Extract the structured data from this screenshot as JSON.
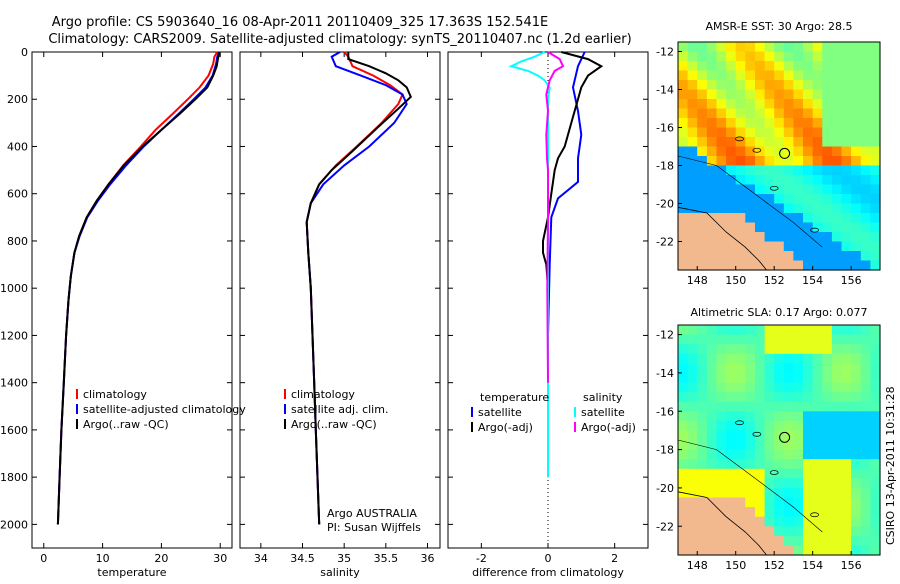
{
  "title_line1": "Argo profile: CS 5903640_16 08-Apr-2011 20110409_325 17.363S 152.541E",
  "title_line2": "Climatology: CARS2009. Satellite-adjusted climatology: synTS_20110407.nc (1.2d earlier)",
  "credit": "CSIRO 13-Apr-2011 10:31:28",
  "colors": {
    "clim": "#ff0000",
    "sat": "#0000ff",
    "argo": "#000000",
    "sal_sat": "#00ffff",
    "sal_argo": "#ff00ff",
    "land": "#f2b88e"
  },
  "chart_data": [
    {
      "id": "temperature",
      "type": "line",
      "xlabel": "temperature",
      "ylabel": "",
      "xlim": [
        -2,
        32
      ],
      "ylim": [
        2100,
        0
      ],
      "xticks": [
        0,
        10,
        20,
        30
      ],
      "yticks": [
        0,
        200,
        400,
        600,
        800,
        1000,
        1200,
        1400,
        1600,
        1800,
        2000
      ],
      "legend": [
        "climatology",
        "satellite-adjusted climatology",
        "Argo(..raw -QC)"
      ],
      "series": [
        {
          "name": "climatology",
          "color": "clim",
          "points": [
            [
              29.5,
              0
            ],
            [
              29.0,
              20
            ],
            [
              28.8,
              50
            ],
            [
              28.0,
              100
            ],
            [
              26.5,
              150
            ],
            [
              24.5,
              200
            ],
            [
              22.0,
              260
            ],
            [
              19.0,
              330
            ],
            [
              16.5,
              400
            ],
            [
              13.5,
              480
            ],
            [
              11.0,
              560
            ],
            [
              9.0,
              630
            ],
            [
              7.3,
              700
            ],
            [
              6.0,
              780
            ],
            [
              5.2,
              850
            ],
            [
              4.6,
              950
            ],
            [
              4.2,
              1050
            ],
            [
              3.8,
              1200
            ],
            [
              3.4,
              1400
            ],
            [
              3.0,
              1600
            ],
            [
              2.7,
              1800
            ],
            [
              2.4,
              2000
            ]
          ]
        },
        {
          "name": "satellite-adjusted climatology",
          "color": "sat",
          "points": [
            [
              29.8,
              0
            ],
            [
              29.5,
              20
            ],
            [
              29.3,
              50
            ],
            [
              28.7,
              100
            ],
            [
              27.5,
              150
            ],
            [
              25.5,
              200
            ],
            [
              23.0,
              260
            ],
            [
              20.0,
              330
            ],
            [
              17.0,
              400
            ],
            [
              14.0,
              480
            ],
            [
              11.3,
              560
            ],
            [
              9.2,
              630
            ],
            [
              7.4,
              700
            ],
            [
              6.1,
              780
            ],
            [
              5.2,
              850
            ],
            [
              4.6,
              950
            ],
            [
              4.2,
              1050
            ],
            [
              3.8,
              1200
            ],
            [
              3.4,
              1400
            ],
            [
              3.0,
              1600
            ],
            [
              2.7,
              1800
            ],
            [
              2.4,
              2000
            ]
          ]
        },
        {
          "name": "Argo(..raw -QC)",
          "color": "argo",
          "points": [
            [
              29.9,
              0
            ],
            [
              29.6,
              30
            ],
            [
              29.4,
              60
            ],
            [
              28.8,
              100
            ],
            [
              27.8,
              150
            ],
            [
              25.8,
              200
            ],
            [
              23.2,
              260
            ],
            [
              20.0,
              330
            ],
            [
              16.8,
              400
            ],
            [
              13.6,
              480
            ],
            [
              11.0,
              560
            ],
            [
              9.0,
              630
            ],
            [
              7.3,
              700
            ],
            [
              6.0,
              780
            ],
            [
              5.2,
              850
            ],
            [
              4.6,
              950
            ],
            [
              4.2,
              1050
            ],
            [
              3.8,
              1200
            ],
            [
              3.4,
              1400
            ],
            [
              3.0,
              1600
            ],
            [
              2.7,
              1800
            ],
            [
              2.4,
              2000
            ]
          ]
        }
      ]
    },
    {
      "id": "salinity",
      "type": "line",
      "xlabel": "salinity",
      "xlim": [
        33.75,
        36.15
      ],
      "ylim": [
        2100,
        0
      ],
      "xticks": [
        34,
        34.5,
        35,
        35.5,
        36
      ],
      "legend": [
        "climatology",
        "satellite adj. clim.",
        "Argo(..raw -QC)"
      ],
      "annotation": [
        "Argo AUSTRALIA",
        "PI: Susan Wijffels"
      ],
      "series": [
        {
          "name": "climatology",
          "color": "clim",
          "points": [
            [
              35.0,
              0
            ],
            [
              35.05,
              20
            ],
            [
              35.1,
              60
            ],
            [
              35.35,
              100
            ],
            [
              35.55,
              140
            ],
            [
              35.7,
              180
            ],
            [
              35.65,
              220
            ],
            [
              35.45,
              300
            ],
            [
              35.15,
              400
            ],
            [
              34.9,
              480
            ],
            [
              34.7,
              560
            ],
            [
              34.6,
              640
            ],
            [
              34.55,
              720
            ],
            [
              34.57,
              850
            ],
            [
              34.6,
              1000
            ],
            [
              34.62,
              1200
            ],
            [
              34.64,
              1400
            ],
            [
              34.66,
              1600
            ],
            [
              34.68,
              1800
            ],
            [
              34.7,
              2000
            ]
          ]
        },
        {
          "name": "satellite adj. clim.",
          "color": "sat",
          "points": [
            [
              34.95,
              0
            ],
            [
              34.85,
              20
            ],
            [
              34.9,
              60
            ],
            [
              35.2,
              100
            ],
            [
              35.5,
              140
            ],
            [
              35.7,
              180
            ],
            [
              35.75,
              220
            ],
            [
              35.6,
              300
            ],
            [
              35.3,
              400
            ],
            [
              35.0,
              480
            ],
            [
              34.75,
              560
            ],
            [
              34.6,
              640
            ],
            [
              34.55,
              720
            ],
            [
              34.57,
              850
            ],
            [
              34.6,
              1000
            ],
            [
              34.62,
              1200
            ],
            [
              34.64,
              1400
            ],
            [
              34.66,
              1600
            ],
            [
              34.68,
              1800
            ],
            [
              34.7,
              2000
            ]
          ]
        },
        {
          "name": "Argo(..raw -QC)",
          "color": "argo",
          "points": [
            [
              35.05,
              0
            ],
            [
              35.05,
              30
            ],
            [
              35.3,
              60
            ],
            [
              35.5,
              90
            ],
            [
              35.65,
              120
            ],
            [
              35.75,
              150
            ],
            [
              35.8,
              190
            ],
            [
              35.65,
              240
            ],
            [
              35.4,
              320
            ],
            [
              35.1,
              420
            ],
            [
              34.85,
              500
            ],
            [
              34.7,
              560
            ],
            [
              34.6,
              640
            ],
            [
              34.55,
              720
            ],
            [
              34.57,
              850
            ],
            [
              34.6,
              1000
            ],
            [
              34.62,
              1200
            ],
            [
              34.64,
              1400
            ],
            [
              34.66,
              1600
            ],
            [
              34.68,
              1800
            ],
            [
              34.7,
              2000
            ]
          ]
        }
      ]
    },
    {
      "id": "difference",
      "type": "line",
      "xlabel": "difference from climatology",
      "xlim": [
        -3,
        3
      ],
      "ylim": [
        2100,
        0
      ],
      "xticks": [
        -2,
        0,
        2
      ],
      "legend_left": {
        "title": "temperature",
        "items": [
          "satellite",
          "Argo(-adj)"
        ]
      },
      "legend_right": {
        "title": "salinity",
        "items": [
          "satellite",
          "Argo(-adj)"
        ]
      },
      "series": [
        {
          "name": "temperature satellite",
          "color": "sat",
          "points": [
            [
              1.1,
              0
            ],
            [
              0.9,
              60
            ],
            [
              0.75,
              150
            ],
            [
              0.9,
              250
            ],
            [
              1.0,
              350
            ],
            [
              0.9,
              450
            ],
            [
              0.9,
              550
            ],
            [
              0.3,
              620
            ],
            [
              0.1,
              700
            ],
            [
              0.05,
              900
            ],
            [
              0.0,
              1200
            ],
            [
              0.0,
              1800
            ]
          ]
        },
        {
          "name": "temperature Argo(-adj)",
          "color": "argo",
          "points": [
            [
              0.4,
              0
            ],
            [
              1.2,
              30
            ],
            [
              1.6,
              60
            ],
            [
              1.2,
              100
            ],
            [
              1.0,
              150
            ],
            [
              0.9,
              200
            ],
            [
              0.7,
              300
            ],
            [
              0.5,
              400
            ],
            [
              0.3,
              450
            ],
            [
              0.2,
              500
            ],
            [
              0.1,
              600
            ],
            [
              0.0,
              700
            ],
            [
              -0.15,
              800
            ],
            [
              -0.15,
              850
            ],
            [
              -0.05,
              900
            ],
            [
              0.0,
              1000
            ],
            [
              0.0,
              1400
            ]
          ]
        },
        {
          "name": "salinity satellite",
          "color": "sal_sat",
          "points": [
            [
              -0.1,
              0
            ],
            [
              -0.4,
              20
            ],
            [
              -0.8,
              40
            ],
            [
              -1.1,
              60
            ],
            [
              -0.6,
              80
            ],
            [
              -0.3,
              100
            ],
            [
              -0.1,
              120
            ],
            [
              0.05,
              150
            ],
            [
              0.0,
              200
            ],
            [
              0.0,
              400
            ],
            [
              0.0,
              800
            ],
            [
              0.0,
              1200
            ],
            [
              0.0,
              1800
            ]
          ]
        },
        {
          "name": "salinity Argo(-adj)",
          "color": "sal_argo",
          "points": [
            [
              0.0,
              0
            ],
            [
              0.35,
              30
            ],
            [
              0.45,
              60
            ],
            [
              0.2,
              80
            ],
            [
              0.05,
              120
            ],
            [
              -0.05,
              180
            ],
            [
              0.0,
              250
            ],
            [
              -0.05,
              350
            ],
            [
              -0.03,
              450
            ],
            [
              0.0,
              500
            ],
            [
              0.0,
              700
            ],
            [
              -0.02,
              1000
            ],
            [
              0.0,
              1400
            ]
          ]
        }
      ]
    },
    {
      "id": "sst_map",
      "type": "heatmap",
      "title": "AMSR-E SST: 30 Argo: 28.5",
      "xticks": [
        148,
        150,
        152,
        154,
        156
      ],
      "yticks": [
        -12,
        -14,
        -16,
        -18,
        -20,
        -22
      ]
    },
    {
      "id": "sla_map",
      "type": "heatmap",
      "title": "Altimetric SLA: 0.17 Argo: 0.077",
      "xticks": [
        148,
        150,
        152,
        154,
        156
      ],
      "yticks": [
        -12,
        -14,
        -16,
        -18,
        -20,
        -22
      ]
    }
  ]
}
